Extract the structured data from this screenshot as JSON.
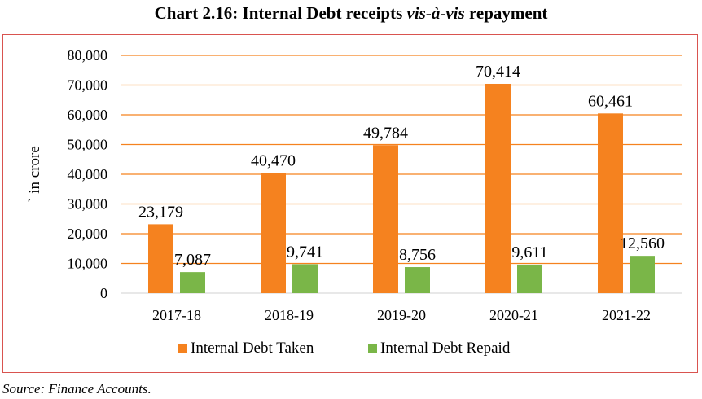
{
  "header": {
    "title_prefix": "Chart 2.16: Internal Debt receipts ",
    "title_italic": "vis-à-vis",
    "title_suffix": " repayment"
  },
  "footer": {
    "source": "Source: Finance Accounts."
  },
  "chart_data": {
    "type": "bar",
    "categories": [
      "2017-18",
      "2018-19",
      "2019-20",
      "2020-21",
      "2021-22"
    ],
    "series": [
      {
        "name": "Internal Debt Taken",
        "values": [
          23179,
          40470,
          49784,
          70414,
          60461
        ],
        "labels": [
          "23,179",
          "40,470",
          "49,784",
          "70,414",
          "60,461"
        ],
        "color": "#f5821f"
      },
      {
        "name": "Internal Debt Repaid",
        "values": [
          7087,
          9741,
          8756,
          9611,
          12560
        ],
        "labels": [
          "7,087",
          "9,741",
          "8,756",
          "9,611",
          "12,560"
        ],
        "color": "#7ab648"
      }
    ],
    "ylabel": "` in crore",
    "ylim": [
      0,
      80000
    ],
    "yticks": [
      0,
      10000,
      20000,
      30000,
      40000,
      50000,
      60000,
      70000,
      80000
    ],
    "ytick_labels": [
      "0",
      "10,000",
      "20,000",
      "30,000",
      "40,000",
      "50,000",
      "60,000",
      "70,000",
      "80,000"
    ],
    "gridline_color": "#f5821f",
    "grid": true,
    "legend_position": "bottom"
  }
}
